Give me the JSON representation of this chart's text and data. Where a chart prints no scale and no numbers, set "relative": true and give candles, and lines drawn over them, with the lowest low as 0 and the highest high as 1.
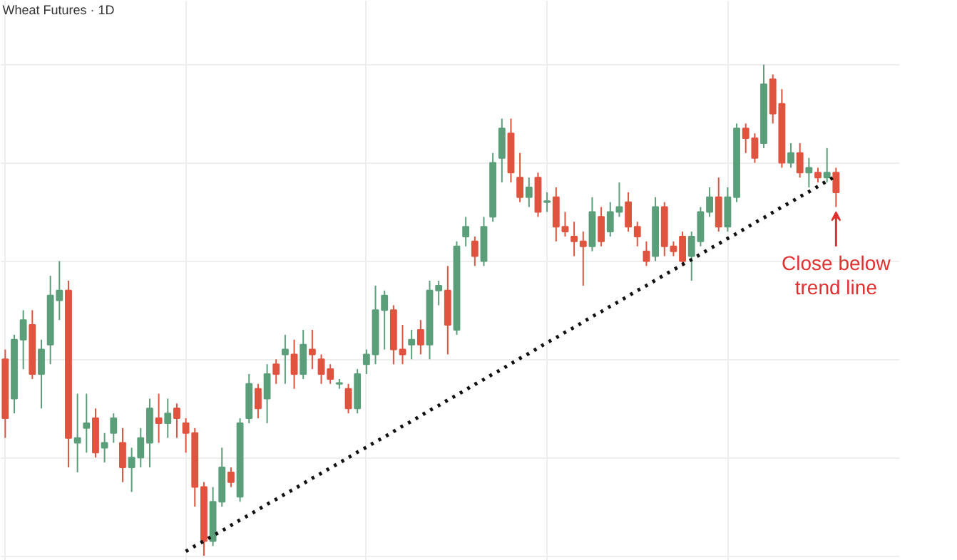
{
  "chart_data": {
    "type": "candlestick",
    "title": "Wheat Futures · 1D",
    "relative": true,
    "grid": true,
    "tick_labels": false,
    "categories": [
      null,
      null,
      null,
      null,
      null,
      null,
      null,
      null,
      null,
      null,
      null,
      null,
      null,
      null,
      null,
      null,
      null,
      null,
      null,
      null,
      null,
      null,
      null,
      null,
      null,
      null,
      null,
      null,
      null,
      null,
      null,
      null,
      null,
      null,
      null,
      null,
      null,
      null,
      null,
      null,
      null,
      null,
      null,
      null,
      null,
      null,
      null,
      null,
      null,
      null,
      null,
      null,
      null,
      null,
      null,
      null,
      null,
      null,
      null,
      null,
      null,
      null,
      null,
      null,
      null,
      null,
      null,
      null,
      null,
      null,
      null,
      null,
      null,
      null,
      null,
      null,
      null,
      null,
      null,
      null,
      null,
      null,
      null,
      null,
      null,
      null,
      null,
      null,
      null,
      null,
      null,
      null,
      null
    ],
    "ohlc": [
      [
        0.4,
        0.42,
        0.24,
        0.28
      ],
      [
        0.32,
        0.45,
        0.29,
        0.44
      ],
      [
        0.44,
        0.5,
        0.38,
        0.48
      ],
      [
        0.47,
        0.5,
        0.36,
        0.37
      ],
      [
        0.37,
        0.44,
        0.3,
        0.42
      ],
      [
        0.43,
        0.57,
        0.39,
        0.53
      ],
      [
        0.52,
        0.6,
        0.48,
        0.54
      ],
      [
        0.54,
        0.56,
        0.18,
        0.24
      ],
      [
        0.23,
        0.33,
        0.17,
        0.24
      ],
      [
        0.26,
        0.33,
        0.21,
        0.27
      ],
      [
        0.28,
        0.3,
        0.2,
        0.21
      ],
      [
        0.22,
        0.25,
        0.19,
        0.23
      ],
      [
        0.25,
        0.29,
        0.23,
        0.28
      ],
      [
        0.23,
        0.26,
        0.15,
        0.18
      ],
      [
        0.18,
        0.22,
        0.13,
        0.2
      ],
      [
        0.2,
        0.26,
        0.18,
        0.24
      ],
      [
        0.23,
        0.32,
        0.18,
        0.3
      ],
      [
        0.28,
        0.33,
        0.23,
        0.27
      ],
      [
        0.27,
        0.32,
        0.24,
        0.29
      ],
      [
        0.3,
        0.31,
        0.24,
        0.28
      ],
      [
        0.27,
        0.28,
        0.21,
        0.25
      ],
      [
        0.25,
        0.26,
        0.1,
        0.14
      ],
      [
        0.14,
        0.15,
        0.0,
        0.03
      ],
      [
        0.03,
        0.14,
        0.02,
        0.11
      ],
      [
        0.11,
        0.22,
        0.1,
        0.18
      ],
      [
        0.17,
        0.18,
        0.14,
        0.15
      ],
      [
        0.12,
        0.28,
        0.11,
        0.27
      ],
      [
        0.28,
        0.37,
        0.27,
        0.35
      ],
      [
        0.34,
        0.35,
        0.28,
        0.3
      ],
      [
        0.32,
        0.39,
        0.27,
        0.37
      ],
      [
        0.39,
        0.4,
        0.35,
        0.37
      ],
      [
        0.41,
        0.45,
        0.35,
        0.42
      ],
      [
        0.41,
        0.44,
        0.34,
        0.37
      ],
      [
        0.37,
        0.46,
        0.36,
        0.43
      ],
      [
        0.42,
        0.46,
        0.38,
        0.41
      ],
      [
        0.4,
        0.41,
        0.35,
        0.37
      ],
      [
        0.38,
        0.39,
        0.35,
        0.36
      ],
      [
        0.35,
        0.36,
        0.34,
        0.35
      ],
      [
        0.34,
        0.35,
        0.29,
        0.3
      ],
      [
        0.3,
        0.38,
        0.29,
        0.37
      ],
      [
        0.39,
        0.42,
        0.37,
        0.41
      ],
      [
        0.41,
        0.55,
        0.39,
        0.5
      ],
      [
        0.5,
        0.54,
        0.42,
        0.53
      ],
      [
        0.5,
        0.51,
        0.39,
        0.42
      ],
      [
        0.42,
        0.47,
        0.39,
        0.41
      ],
      [
        0.43,
        0.46,
        0.4,
        0.44
      ],
      [
        0.46,
        0.48,
        0.41,
        0.43
      ],
      [
        0.43,
        0.56,
        0.4,
        0.54
      ],
      [
        0.54,
        0.56,
        0.51,
        0.55
      ],
      [
        0.54,
        0.59,
        0.41,
        0.47
      ],
      [
        0.46,
        0.64,
        0.45,
        0.63
      ],
      [
        0.65,
        0.69,
        0.63,
        0.67
      ],
      [
        0.64,
        0.65,
        0.59,
        0.61
      ],
      [
        0.6,
        0.69,
        0.59,
        0.67
      ],
      [
        0.69,
        0.82,
        0.68,
        0.8
      ],
      [
        0.81,
        0.89,
        0.76,
        0.87
      ],
      [
        0.86,
        0.89,
        0.76,
        0.78
      ],
      [
        0.77,
        0.82,
        0.72,
        0.73
      ],
      [
        0.73,
        0.77,
        0.71,
        0.75
      ],
      [
        0.77,
        0.78,
        0.69,
        0.7
      ],
      [
        0.72,
        0.74,
        0.7,
        0.72
      ],
      [
        0.73,
        0.75,
        0.64,
        0.67
      ],
      [
        0.67,
        0.7,
        0.65,
        0.66
      ],
      [
        0.65,
        0.68,
        0.61,
        0.64
      ],
      [
        0.64,
        0.66,
        0.55,
        0.63
      ],
      [
        0.63,
        0.73,
        0.62,
        0.7
      ],
      [
        0.69,
        0.71,
        0.63,
        0.64
      ],
      [
        0.66,
        0.72,
        0.65,
        0.7
      ],
      [
        0.7,
        0.76,
        0.69,
        0.71
      ],
      [
        0.72,
        0.74,
        0.66,
        0.67
      ],
      [
        0.67,
        0.68,
        0.63,
        0.65
      ],
      [
        0.62,
        0.64,
        0.59,
        0.6
      ],
      [
        0.61,
        0.73,
        0.6,
        0.71
      ],
      [
        0.71,
        0.72,
        0.61,
        0.63
      ],
      [
        0.63,
        0.64,
        0.61,
        0.62
      ],
      [
        0.65,
        0.66,
        0.59,
        0.6
      ],
      [
        0.61,
        0.66,
        0.56,
        0.65
      ],
      [
        0.64,
        0.71,
        0.63,
        0.7
      ],
      [
        0.7,
        0.75,
        0.69,
        0.73
      ],
      [
        0.73,
        0.77,
        0.66,
        0.67
      ],
      [
        0.67,
        0.75,
        0.66,
        0.73
      ],
      [
        0.73,
        0.88,
        0.72,
        0.87
      ],
      [
        0.87,
        0.88,
        0.82,
        0.85
      ],
      [
        0.85,
        0.86,
        0.8,
        0.81
      ],
      [
        0.84,
        1.0,
        0.83,
        0.96
      ],
      [
        0.97,
        0.98,
        0.88,
        0.9
      ],
      [
        0.92,
        0.95,
        0.79,
        0.8
      ],
      [
        0.8,
        0.84,
        0.79,
        0.82
      ],
      [
        0.82,
        0.84,
        0.77,
        0.78
      ],
      [
        0.78,
        0.81,
        0.75,
        0.79
      ],
      [
        0.78,
        0.79,
        0.76,
        0.77
      ],
      [
        0.77,
        0.83,
        0.76,
        0.78
      ],
      [
        0.78,
        0.79,
        0.71,
        0.74
      ]
    ],
    "colors": [
      "#e0533f",
      "#5b9e7a",
      "#5b9e7a",
      "#e0533f",
      "#5b9e7a",
      "#5b9e7a",
      "#5b9e7a",
      "#e0533f",
      "#5b9e7a",
      "#5b9e7a",
      "#e0533f",
      "#5b9e7a",
      "#5b9e7a",
      "#e0533f",
      "#5b9e7a",
      "#5b9e7a",
      "#5b9e7a",
      "#e0533f",
      "#5b9e7a",
      "#e0533f",
      "#e0533f",
      "#e0533f",
      "#e0533f",
      "#5b9e7a",
      "#5b9e7a",
      "#e0533f",
      "#5b9e7a",
      "#5b9e7a",
      "#e0533f",
      "#5b9e7a",
      "#e0533f",
      "#5b9e7a",
      "#e0533f",
      "#5b9e7a",
      "#e0533f",
      "#e0533f",
      "#e0533f",
      "#5b9e7a",
      "#e0533f",
      "#5b9e7a",
      "#5b9e7a",
      "#5b9e7a",
      "#5b9e7a",
      "#e0533f",
      "#e0533f",
      "#5b9e7a",
      "#e0533f",
      "#5b9e7a",
      "#5b9e7a",
      "#e0533f",
      "#5b9e7a",
      "#5b9e7a",
      "#e0533f",
      "#5b9e7a",
      "#5b9e7a",
      "#5b9e7a",
      "#e0533f",
      "#e0533f",
      "#5b9e7a",
      "#e0533f",
      "#5b9e7a",
      "#e0533f",
      "#e0533f",
      "#e0533f",
      "#e0533f",
      "#5b9e7a",
      "#e0533f",
      "#5b9e7a",
      "#5b9e7a",
      "#e0533f",
      "#e0533f",
      "#e0533f",
      "#5b9e7a",
      "#e0533f",
      "#e0533f",
      "#e0533f",
      "#5b9e7a",
      "#5b9e7a",
      "#5b9e7a",
      "#e0533f",
      "#5b9e7a",
      "#5b9e7a",
      "#e0533f",
      "#e0533f",
      "#5b9e7a",
      "#e0533f",
      "#e0533f",
      "#5b9e7a",
      "#e0533f",
      "#5b9e7a",
      "#e0533f",
      "#5b9e7a",
      "#e0533f"
    ],
    "series": [
      {
        "type": "line",
        "color": "#111111",
        "line_style": "dotted",
        "values": [
          null,
          null,
          null,
          null,
          null,
          null,
          null,
          null,
          null,
          null,
          null,
          null,
          null,
          null,
          null,
          null,
          null,
          null,
          null,
          null,
          0.009,
          0.02,
          0.03,
          0.041,
          0.051,
          0.062,
          0.073,
          0.083,
          0.094,
          0.105,
          0.115,
          0.126,
          0.136,
          0.147,
          0.158,
          0.168,
          0.179,
          0.189,
          0.2,
          0.211,
          0.221,
          0.232,
          0.242,
          0.253,
          0.264,
          0.274,
          0.285,
          0.296,
          0.306,
          0.317,
          0.327,
          0.338,
          0.349,
          0.359,
          0.37,
          0.38,
          0.391,
          0.402,
          0.412,
          0.423,
          0.434,
          0.444,
          0.455,
          0.465,
          0.476,
          0.487,
          0.497,
          0.508,
          0.518,
          0.529,
          0.54,
          0.55,
          0.561,
          0.572,
          0.582,
          0.593,
          0.603,
          0.614,
          0.625,
          0.635,
          0.646,
          0.656,
          0.667,
          0.678,
          0.688,
          0.699,
          0.71,
          0.72,
          0.731,
          0.741,
          0.752,
          0.763,
          0.773
        ]
      }
    ],
    "annotations": [
      "Close below trend line"
    ]
  }
}
